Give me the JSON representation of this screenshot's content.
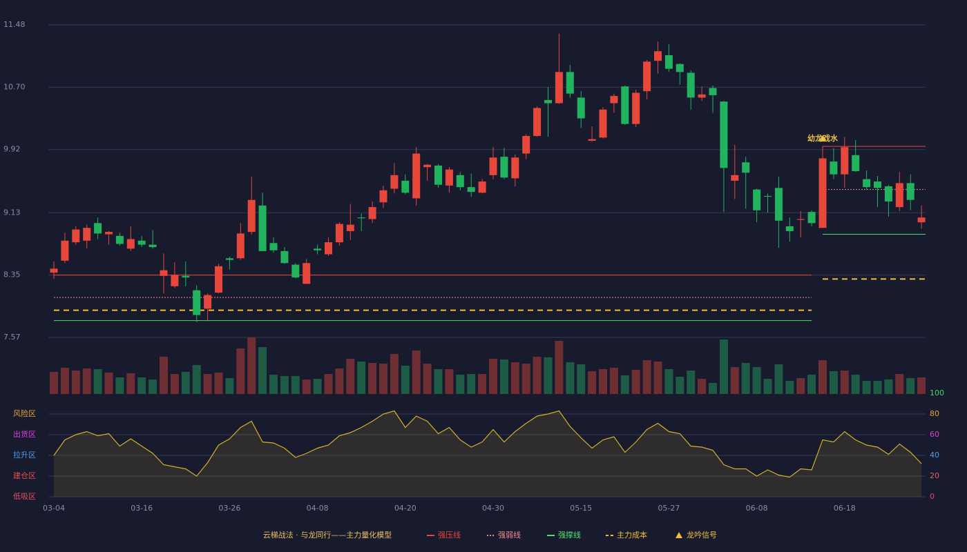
{
  "chart_data": [
    {
      "type": "candlestick",
      "categories": [
        "03-04",
        null,
        null,
        null,
        null,
        null,
        null,
        null,
        "03-16",
        null,
        null,
        null,
        null,
        null,
        null,
        null,
        "03-26",
        null,
        null,
        null,
        null,
        null,
        null,
        null,
        "04-08",
        null,
        null,
        null,
        null,
        null,
        null,
        null,
        "04-20",
        null,
        null,
        null,
        null,
        null,
        null,
        null,
        "04-30",
        null,
        null,
        null,
        null,
        null,
        null,
        null,
        "05-15",
        null,
        null,
        null,
        null,
        null,
        null,
        null,
        "05-27",
        null,
        null,
        null,
        null,
        null,
        null,
        null,
        "06-08",
        null,
        null,
        null,
        null,
        null,
        null,
        null,
        "06-18",
        null,
        null,
        null,
        null,
        null,
        null,
        null
      ],
      "open": [
        8.38,
        8.53,
        8.76,
        8.78,
        9.0,
        8.86,
        8.84,
        8.68,
        8.78,
        8.73,
        8.34,
        8.21,
        8.34,
        8.16,
        7.93,
        8.13,
        8.56,
        8.56,
        8.89,
        9.22,
        8.75,
        8.65,
        8.48,
        8.24,
        8.68,
        8.61,
        8.76,
        8.9,
        9.07,
        9.05,
        9.26,
        9.43,
        9.53,
        9.31,
        9.7,
        9.72,
        9.47,
        9.6,
        9.45,
        9.38,
        9.6,
        9.83,
        9.56,
        9.87,
        10.09,
        10.54,
        10.5,
        10.89,
        10.57,
        10.03,
        10.07,
        10.5,
        10.71,
        10.24,
        10.65,
        11.03,
        11.1,
        10.99,
        10.88,
        10.57,
        10.69,
        10.52,
        9.53,
        9.76,
        9.42,
        9.34,
        9.44,
        8.96,
        9.04,
        9.14,
        8.94,
        9.77,
        9.61,
        9.85,
        9.55,
        9.52,
        9.46,
        9.2,
        9.5,
        9.01
      ],
      "high": [
        8.52,
        8.88,
        8.96,
        8.98,
        9.07,
        8.9,
        8.88,
        8.96,
        8.84,
        8.91,
        8.62,
        8.51,
        8.52,
        8.22,
        8.12,
        8.49,
        8.58,
        9.0,
        9.58,
        9.38,
        8.82,
        8.7,
        8.5,
        8.55,
        8.73,
        8.82,
        9.01,
        9.24,
        9.12,
        9.27,
        9.47,
        9.75,
        9.61,
        9.95,
        9.74,
        9.74,
        9.7,
        9.64,
        9.62,
        9.55,
        9.95,
        9.94,
        9.86,
        10.11,
        10.46,
        10.7,
        11.37,
        10.98,
        10.65,
        10.21,
        10.45,
        10.62,
        10.72,
        10.67,
        11.04,
        11.27,
        11.24,
        11.0,
        10.91,
        10.71,
        10.72,
        10.53,
        9.98,
        9.83,
        9.43,
        9.37,
        9.58,
        9.07,
        9.15,
        9.16,
        9.96,
        9.94,
        10.08,
        10.04,
        9.66,
        9.59,
        9.48,
        9.64,
        9.61,
        9.22
      ],
      "low": [
        8.3,
        8.5,
        8.73,
        8.68,
        8.8,
        8.73,
        8.72,
        8.65,
        8.7,
        8.68,
        8.12,
        8.19,
        8.21,
        7.76,
        7.77,
        8.12,
        8.42,
        8.54,
        8.86,
        8.65,
        8.63,
        8.49,
        8.31,
        8.24,
        8.61,
        8.59,
        8.72,
        8.79,
        8.9,
        9.0,
        9.19,
        9.37,
        9.36,
        9.22,
        9.53,
        9.44,
        9.38,
        9.41,
        9.33,
        9.37,
        9.55,
        9.55,
        9.46,
        9.8,
        10.08,
        10.08,
        10.49,
        10.57,
        10.19,
        10.02,
        10.06,
        10.38,
        10.23,
        10.2,
        10.55,
        10.87,
        10.89,
        10.73,
        10.42,
        10.53,
        10.38,
        9.14,
        9.3,
        9.18,
        9.01,
        9.13,
        8.69,
        8.77,
        8.82,
        8.96,
        8.94,
        9.55,
        9.44,
        9.64,
        9.42,
        9.2,
        9.08,
        9.15,
        9.16,
        8.93
      ],
      "close": [
        8.43,
        8.78,
        8.92,
        8.94,
        8.87,
        8.89,
        8.74,
        8.8,
        8.73,
        8.7,
        8.41,
        8.35,
        8.32,
        7.85,
        8.1,
        8.46,
        8.54,
        8.87,
        9.29,
        8.65,
        8.66,
        8.5,
        8.32,
        8.5,
        8.66,
        8.76,
        8.99,
        8.98,
        9.06,
        9.2,
        9.41,
        9.6,
        9.38,
        9.87,
        9.73,
        9.48,
        9.67,
        9.45,
        9.39,
        9.52,
        9.82,
        9.57,
        9.82,
        10.09,
        10.44,
        10.5,
        10.89,
        10.62,
        10.31,
        10.05,
        10.42,
        10.59,
        10.24,
        10.63,
        11.02,
        11.15,
        10.93,
        10.89,
        10.57,
        10.61,
        10.6,
        9.69,
        9.6,
        9.63,
        9.16,
        9.33,
        9.03,
        8.9,
        9.05,
        9.0,
        9.81,
        9.61,
        9.95,
        9.65,
        9.45,
        9.44,
        9.27,
        9.5,
        9.29,
        9.07
      ],
      "up_color": "#e8483b",
      "down_color": "#22b35e",
      "ylim": [
        7.57,
        11.48
      ],
      "yticks": [
        {
          "value": 11.48,
          "label": "11.48"
        },
        {
          "value": 10.7,
          "label": "10.70"
        },
        {
          "value": 9.92,
          "label": "9.92"
        },
        {
          "value": 9.13,
          "label": "9.13"
        },
        {
          "value": 8.35,
          "label": "8.35"
        },
        {
          "value": 7.57,
          "label": "7.57"
        }
      ],
      "grid": true,
      "levels": [
        {
          "name": "强压线",
          "color": "#e8483b",
          "style": "solid",
          "segments": [
            {
              "start": 0,
              "end": 69,
              "value": 8.35
            },
            {
              "start": 70,
              "end": 79,
              "value": 9.96
            }
          ]
        },
        {
          "name": "强弱线",
          "color": "#f08a8a",
          "style": "dotted",
          "segments": [
            {
              "start": 0,
              "end": 69,
              "value": 8.07
            },
            {
              "start": 70,
              "end": 79,
              "value": 9.42
            }
          ]
        },
        {
          "name": "强撑线",
          "color": "#4ee06a",
          "style": "solid",
          "segments": [
            {
              "start": 0,
              "end": 69,
              "value": 7.78
            },
            {
              "start": 70,
              "end": 79,
              "value": 8.86
            }
          ]
        },
        {
          "name": "主力成本",
          "color": "#f0c030",
          "style": "dashed",
          "segments": [
            {
              "start": 0,
              "end": 69,
              "value": 7.91
            },
            {
              "start": 70,
              "end": 79,
              "value": 8.3
            }
          ]
        }
      ],
      "signal": {
        "name": "龙吟信号",
        "index": 70,
        "label": "幼龙戏水",
        "color": "#f0c040"
      },
      "legend_title": "云梯战法 · 与龙同行——主力量化模型"
    },
    {
      "type": "bar",
      "values": [
        32,
        38,
        34,
        37,
        36,
        31,
        24,
        30,
        24,
        21,
        54,
        29,
        32,
        42,
        29,
        31,
        23,
        66,
        82,
        68,
        28,
        26,
        26,
        21,
        22,
        29,
        37,
        51,
        47,
        45,
        44,
        58,
        41,
        63,
        44,
        36,
        36,
        28,
        29,
        29,
        51,
        50,
        46,
        44,
        54,
        53,
        77,
        46,
        43,
        33,
        36,
        38,
        27,
        35,
        49,
        47,
        36,
        25,
        34,
        22,
        16,
        79,
        39,
        45,
        39,
        22,
        43,
        19,
        23,
        28,
        49,
        33,
        34,
        28,
        19,
        19,
        21,
        29,
        23,
        24
      ],
      "up_color": "#6e2e34",
      "down_color": "#1e5b44"
    },
    {
      "type": "line",
      "values": [
        40,
        55,
        60,
        63,
        59,
        61,
        49,
        56,
        49,
        42,
        31,
        29,
        27,
        20,
        33,
        50,
        56,
        67,
        73,
        53,
        52,
        47,
        38,
        42,
        47,
        50,
        59,
        62,
        67,
        73,
        80,
        83,
        67,
        78,
        73,
        61,
        67,
        55,
        48,
        53,
        65,
        53,
        63,
        71,
        78,
        80,
        83,
        68,
        57,
        47,
        55,
        58,
        43,
        53,
        65,
        71,
        63,
        61,
        49,
        48,
        45,
        31,
        27,
        27,
        20,
        26,
        21,
        19,
        27,
        26,
        55,
        53,
        63,
        55,
        50,
        48,
        41,
        51,
        43,
        32
      ],
      "color": "#d4b12a",
      "ylim": [
        0,
        100
      ],
      "yticks": [
        0,
        20,
        40,
        60,
        80,
        100
      ],
      "ytick_colors": [
        "#e8406a",
        "#e86060",
        "#4a9ff0",
        "#d04cd0",
        "#e8a23a",
        "#3ddc6e"
      ],
      "zones": [
        {
          "label": "风险区",
          "value": 80,
          "color": "#e8a23a"
        },
        {
          "label": "出货区",
          "value": 60,
          "color": "#e040e0"
        },
        {
          "label": "拉升区",
          "value": 40,
          "color": "#4a9ff0"
        },
        {
          "label": "建仓区",
          "value": 20,
          "color": "#e85050"
        },
        {
          "label": "低吸区",
          "value": 0,
          "color": "#e05060"
        }
      ]
    }
  ]
}
